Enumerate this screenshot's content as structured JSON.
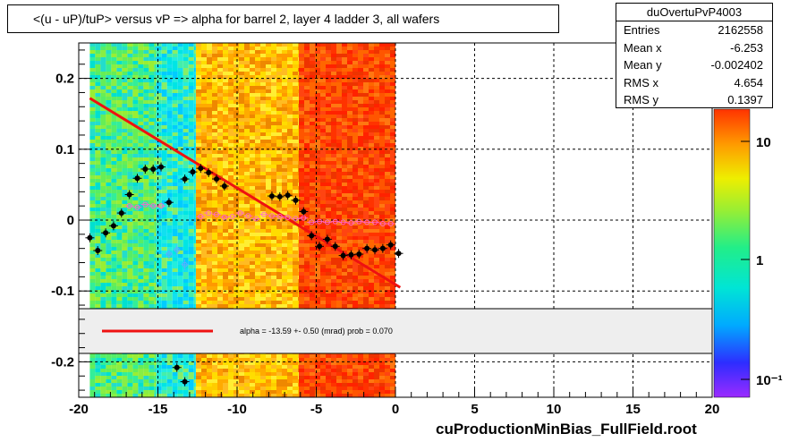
{
  "title": "<(u - uP)/tuP> versus   vP => alpha for barrel 2, layer 4 ladder 3, all wafers",
  "footer": "cuProductionMinBias_FullField.root",
  "stats": {
    "name": "duOvertuPvP4003",
    "rows": [
      {
        "label": "Entries",
        "value": "2162558"
      },
      {
        "label": "Mean x",
        "value": "-6.253"
      },
      {
        "label": "Mean y",
        "value": "-0.002402"
      },
      {
        "label": "RMS x",
        "value": "4.654"
      },
      {
        "label": "RMS y",
        "value": "0.1397"
      }
    ]
  },
  "fit_legend": "alpha =  -13.59 +-  0.50 (mrad) prob = 0.070",
  "colors": {
    "fit_line": "#ee1111",
    "points_black": "#000000",
    "points_pink": "#ff66cc",
    "points_blue": "#66aaff"
  },
  "chart_data": {
    "type": "scatter",
    "xlim": [
      -20,
      20
    ],
    "ylim": [
      -0.25,
      0.25
    ],
    "x_ticks": [
      "-20",
      "-15",
      "-10",
      "-5",
      "0",
      "5",
      "10",
      "15",
      "20"
    ],
    "y_ticks": [
      "0.2",
      "0.1",
      "0",
      "-0.1",
      "-0.2"
    ],
    "grid": true,
    "log_z_scale": true,
    "z_ticks": [
      "10",
      "1",
      "10⁻¹"
    ],
    "heatmap_bands": [
      {
        "x0": -19.3,
        "x1": -15.1,
        "color": "cyan-green"
      },
      {
        "x0": -15.1,
        "x1": -12.6,
        "color": "cyan"
      },
      {
        "x0": -12.6,
        "x1": -6.1,
        "color": "orange-yellow"
      },
      {
        "x0": -6.1,
        "x1": 0,
        "color": "red-orange"
      }
    ],
    "fit_line": {
      "x": [
        -19.3,
        0.3
      ],
      "y": [
        0.172,
        -0.095
      ]
    },
    "series": [
      {
        "marker": "black-filled",
        "x": [
          -19.3,
          -18.8,
          -18.3,
          -17.8,
          -17.3,
          -16.8,
          -16.3,
          -15.8,
          -15.3,
          -14.8,
          -14.3,
          -13.3,
          -12.8,
          -12.3,
          -11.8,
          -11.3,
          -10.8,
          -7.8,
          -7.3,
          -6.8,
          -6.3,
          -5.8,
          -5.3,
          -4.8,
          -4.3,
          -3.8,
          -3.3,
          -2.8,
          -2.3,
          -1.8,
          -1.3,
          -0.8,
          -0.3,
          0.2,
          -13.8,
          -13.3
        ],
        "y": [
          -0.025,
          -0.043,
          -0.018,
          -0.008,
          0.01,
          0.036,
          0.059,
          0.072,
          0.072,
          0.075,
          0.025,
          0.058,
          0.068,
          0.073,
          0.067,
          0.058,
          0.048,
          0.034,
          0.033,
          0.035,
          0.028,
          0.012,
          -0.022,
          -0.037,
          -0.027,
          -0.037,
          -0.05,
          -0.049,
          -0.048,
          -0.04,
          -0.042,
          -0.04,
          -0.035,
          -0.047,
          -0.208,
          -0.228
        ]
      },
      {
        "marker": "pink-open",
        "x": [
          -16.8,
          -16.3,
          -15.8,
          -15.3,
          -14.8,
          -12.3,
          -11.8,
          -11.3,
          -10.8,
          -10.3,
          -9.8,
          -9.3,
          -8.8,
          -8.3,
          -7.8,
          -7.3,
          -6.8,
          -6.3,
          -5.8,
          -5.3,
          -4.8,
          -4.3,
          -3.8,
          -3.3,
          -2.8,
          -2.3,
          -1.8,
          -1.3,
          -0.8,
          -0.3
        ],
        "y": [
          0.02,
          0.018,
          0.022,
          0.02,
          0.02,
          0.005,
          0.01,
          0.008,
          0.004,
          0.005,
          0.01,
          0.006,
          0.002,
          0.008,
          0.006,
          0.005,
          0.004,
          0.002,
          0.003,
          -0.003,
          -0.002,
          -0.003,
          -0.002,
          -0.003,
          -0.004,
          -0.002,
          -0.003,
          -0.003,
          -0.005,
          -0.005
        ]
      },
      {
        "marker": "blue-open",
        "x": [
          -14.3,
          -13.8,
          -13.3
        ],
        "y": [
          -0.048,
          -0.042,
          -0.063
        ]
      }
    ]
  }
}
